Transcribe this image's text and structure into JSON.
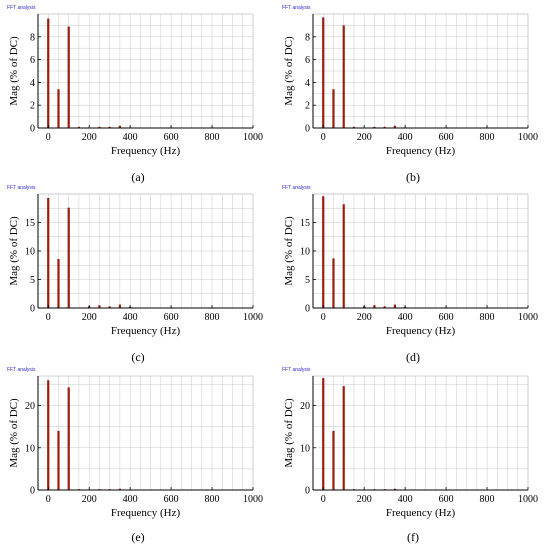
{
  "panel_title": "FFT analysis",
  "chart_data": [
    {
      "type": "bar",
      "title": "FFT analysis",
      "caption": "(a)",
      "xlabel": "Frequency (Hz)",
      "ylabel": "Mag (% of DC)",
      "xlim": [
        -50,
        1000
      ],
      "xticks": [
        0,
        200,
        400,
        600,
        800,
        1000
      ],
      "ylim": [
        0,
        10
      ],
      "yticks": [
        0,
        2,
        4,
        6,
        8
      ],
      "grid": true,
      "series": [
        {
          "x": [
            0,
            50,
            100,
            150,
            250,
            300,
            350,
            400,
            600,
            800
          ],
          "values": [
            9.6,
            3.4,
            8.9,
            0.1,
            0.1,
            0.1,
            0.2,
            0.05,
            0.05,
            0.05
          ]
        }
      ]
    },
    {
      "type": "bar",
      "title": "FFT analysis",
      "caption": "(b)",
      "xlabel": "Frequency (Hz)",
      "ylabel": "Mag (% of DC)",
      "xlim": [
        -50,
        1000
      ],
      "xticks": [
        0,
        200,
        400,
        600,
        800,
        1000
      ],
      "ylim": [
        0,
        10
      ],
      "yticks": [
        0,
        2,
        4,
        6,
        8
      ],
      "grid": true,
      "series": [
        {
          "x": [
            0,
            50,
            100,
            150,
            250,
            300,
            350,
            400,
            600,
            800
          ],
          "values": [
            9.7,
            3.4,
            9.0,
            0.1,
            0.1,
            0.1,
            0.2,
            0.05,
            0.05,
            0.05
          ]
        }
      ]
    },
    {
      "type": "bar",
      "title": "FFT analysis",
      "caption": "(c)",
      "xlabel": "Frequency (Hz)",
      "ylabel": "Mag (% of DC)",
      "xlim": [
        -50,
        1000
      ],
      "xticks": [
        0,
        200,
        400,
        600,
        800,
        1000
      ],
      "ylim": [
        0,
        20
      ],
      "yticks": [
        0,
        5,
        10,
        15
      ],
      "grid": true,
      "series": [
        {
          "x": [
            0,
            50,
            100,
            200,
            250,
            300,
            350,
            400,
            600,
            800
          ],
          "values": [
            19.3,
            8.6,
            17.6,
            0.3,
            0.5,
            0.3,
            0.6,
            0.2,
            0.1,
            0.1
          ]
        }
      ]
    },
    {
      "type": "bar",
      "title": "FFT analysis",
      "caption": "(d)",
      "xlabel": "Frequency (Hz)",
      "ylabel": "Mag (% of DC)",
      "xlim": [
        -50,
        1000
      ],
      "xticks": [
        0,
        200,
        400,
        600,
        800,
        1000
      ],
      "ylim": [
        0,
        20
      ],
      "yticks": [
        0,
        5,
        10,
        15
      ],
      "grid": true,
      "series": [
        {
          "x": [
            0,
            50,
            100,
            200,
            250,
            300,
            350,
            400,
            600,
            800
          ],
          "values": [
            19.6,
            8.7,
            18.2,
            0.3,
            0.5,
            0.3,
            0.6,
            0.2,
            0.1,
            0.1
          ]
        }
      ]
    },
    {
      "type": "bar",
      "title": "FFT analysis",
      "caption": "(e)",
      "xlabel": "Frequency (Hz)",
      "ylabel": "Mag (% of DC)",
      "xlim": [
        -50,
        1000
      ],
      "xticks": [
        0,
        200,
        400,
        600,
        800,
        1000
      ],
      "ylim": [
        0,
        27
      ],
      "yticks": [
        0,
        10,
        20
      ],
      "grid": true,
      "series": [
        {
          "x": [
            0,
            50,
            100,
            150,
            250,
            300,
            350,
            400,
            600,
            800
          ],
          "values": [
            26.0,
            14.0,
            24.3,
            0.2,
            0.2,
            0.2,
            0.3,
            0.1,
            0.1,
            0.1
          ]
        }
      ]
    },
    {
      "type": "bar",
      "title": "FFT analysis",
      "caption": "(f)",
      "xlabel": "Frequency (Hz)",
      "ylabel": "Mag (% of DC)",
      "xlim": [
        -50,
        1000
      ],
      "xticks": [
        0,
        200,
        400,
        600,
        800,
        1000
      ],
      "ylim": [
        0,
        27
      ],
      "yticks": [
        0,
        10,
        20
      ],
      "grid": true,
      "series": [
        {
          "x": [
            0,
            50,
            100,
            150,
            250,
            300,
            350,
            400,
            600,
            800
          ],
          "values": [
            26.5,
            14.0,
            24.6,
            0.2,
            0.2,
            0.2,
            0.3,
            0.1,
            0.1,
            0.1
          ]
        }
      ]
    }
  ],
  "colors": {
    "bar": "#9b1c0c",
    "grid": "#c8c8c8",
    "axis": "#000000",
    "plot_border": "#c8c8c8",
    "title": "#2b2bd4"
  }
}
